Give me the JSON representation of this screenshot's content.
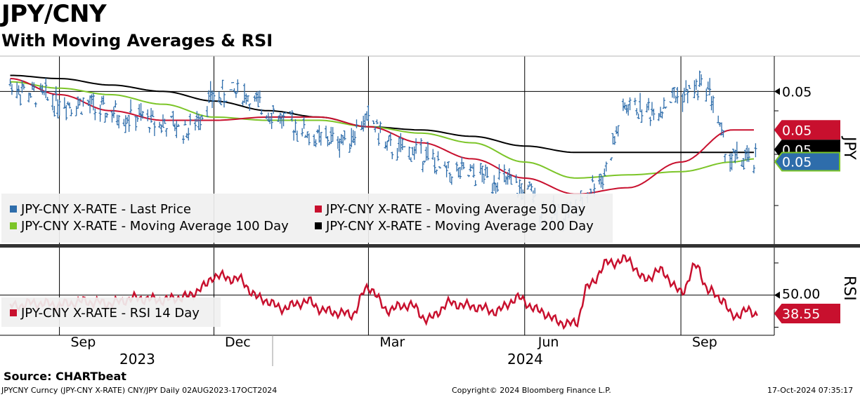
{
  "header": {
    "title": "JPY/CNY",
    "subtitle": "With Moving Averages & RSI"
  },
  "chart_data": [
    {
      "type": "line",
      "panel": "price",
      "ylabel": "JPY",
      "y_tick_labels": [
        "0.05"
      ],
      "x_tick_labels": [
        "Sep",
        "Dec",
        "Mar",
        "Jun",
        "Sep"
      ],
      "x_group_labels": [
        "2023",
        "2024"
      ],
      "x_range": [
        "2023-08-02",
        "2024-10-17"
      ],
      "grid": true,
      "legend_position": "bottom-left",
      "price_tag_labels": [
        "0.05",
        "0.05",
        "0.05"
      ],
      "series": [
        {
          "name": "JPY-CNY X-RATE - Last Price",
          "color": "#2e6dab",
          "style": "ohlc-bars",
          "x": [
            "2023-08-03",
            "2023-08-17",
            "2023-09-01",
            "2023-09-15",
            "2023-10-01",
            "2023-10-15",
            "2023-11-01",
            "2023-11-15",
            "2023-12-01",
            "2023-12-15",
            "2024-01-02",
            "2024-01-15",
            "2024-02-01",
            "2024-02-15",
            "2024-03-01",
            "2024-03-15",
            "2024-04-01",
            "2024-04-15",
            "2024-05-01",
            "2024-05-15",
            "2024-06-01",
            "2024-06-15",
            "2024-07-01",
            "2024-07-15",
            "2024-08-01",
            "2024-08-15",
            "2024-09-01",
            "2024-09-15",
            "2024-10-01",
            "2024-10-15"
          ],
          "values": [
            0.0505,
            0.0502,
            0.05,
            0.0499,
            0.0496,
            0.0495,
            0.0493,
            0.0491,
            0.0501,
            0.0503,
            0.0497,
            0.0493,
            0.0488,
            0.0488,
            0.0494,
            0.0485,
            0.0484,
            0.0478,
            0.0477,
            0.0476,
            0.0472,
            0.0465,
            0.0466,
            0.0476,
            0.0498,
            0.0497,
            0.0502,
            0.0505,
            0.0482,
            0.0481
          ]
        },
        {
          "name": "JPY-CNY X-RATE - Moving Average 50 Day",
          "color": "#c8102e",
          "x": [
            "2023-08-03",
            "2023-09-01",
            "2023-10-01",
            "2023-11-01",
            "2023-12-01",
            "2024-01-02",
            "2024-02-01",
            "2024-03-01",
            "2024-04-01",
            "2024-05-01",
            "2024-06-01",
            "2024-07-01",
            "2024-08-01",
            "2024-09-01",
            "2024-10-01",
            "2024-10-15"
          ],
          "values": [
            0.0507,
            0.0502,
            0.0497,
            0.0494,
            0.0494,
            0.0495,
            0.0495,
            0.0492,
            0.0487,
            0.0482,
            0.0476,
            0.0471,
            0.0473,
            0.0481,
            0.0491,
            0.0491
          ]
        },
        {
          "name": "JPY-CNY X-RATE - Moving Average 100 Day",
          "color": "#7cc528",
          "x": [
            "2023-08-03",
            "2023-09-01",
            "2023-10-01",
            "2023-11-01",
            "2023-12-01",
            "2024-01-02",
            "2024-02-01",
            "2024-03-01",
            "2024-04-01",
            "2024-05-01",
            "2024-06-01",
            "2024-07-01",
            "2024-08-01",
            "2024-09-01",
            "2024-10-01",
            "2024-10-15"
          ],
          "values": [
            0.0506,
            0.0504,
            0.0502,
            0.0499,
            0.0495,
            0.0494,
            0.0494,
            0.0492,
            0.049,
            0.0487,
            0.0481,
            0.0476,
            0.0477,
            0.0478,
            0.0481,
            0.0482
          ]
        },
        {
          "name": "JPY-CNY X-RATE - Moving Average 200 Day",
          "color": "#000000",
          "x": [
            "2023-08-03",
            "2023-09-01",
            "2023-10-01",
            "2023-11-01",
            "2023-12-01",
            "2024-01-02",
            "2024-02-01",
            "2024-03-01",
            "2024-04-01",
            "2024-05-01",
            "2024-06-01",
            "2024-07-01",
            "2024-08-01",
            "2024-09-01",
            "2024-10-01",
            "2024-10-15"
          ],
          "values": [
            0.0508,
            0.0507,
            0.0505,
            0.0503,
            0.05,
            0.0497,
            0.0495,
            0.0492,
            0.0491,
            0.0489,
            0.0486,
            0.0484,
            0.0484,
            0.0484,
            0.0484,
            0.0484
          ]
        }
      ]
    },
    {
      "type": "line",
      "panel": "rsi",
      "ylabel": "RSI",
      "y_tick_labels": [
        "50.00"
      ],
      "reference_line": 50,
      "legend_position": "bottom-left",
      "price_tag_labels": [
        "38.55"
      ],
      "series": [
        {
          "name": "JPY-CNY X-RATE - RSI 14 Day",
          "color": "#c8102e",
          "x": [
            "2023-08-03",
            "2023-08-17",
            "2023-09-01",
            "2023-09-15",
            "2023-10-01",
            "2023-10-15",
            "2023-11-01",
            "2023-11-15",
            "2023-11-25",
            "2023-12-01",
            "2023-12-15",
            "2023-12-28",
            "2024-01-10",
            "2024-01-25",
            "2024-02-05",
            "2024-02-20",
            "2024-03-01",
            "2024-03-12",
            "2024-03-25",
            "2024-04-05",
            "2024-04-18",
            "2024-05-01",
            "2024-05-15",
            "2024-05-28",
            "2024-06-10",
            "2024-06-22",
            "2024-07-01",
            "2024-07-08",
            "2024-07-20",
            "2024-08-01",
            "2024-08-10",
            "2024-08-20",
            "2024-09-01",
            "2024-09-10",
            "2024-09-18",
            "2024-09-25",
            "2024-10-01",
            "2024-10-10",
            "2024-10-16"
          ],
          "values": [
            43,
            45,
            44,
            46,
            45,
            48,
            47,
            49,
            55,
            62,
            60,
            48,
            42,
            46,
            40,
            38,
            55,
            41,
            44,
            35,
            45,
            43,
            40,
            48,
            40,
            33,
            32,
            55,
            70,
            72,
            60,
            65,
            52,
            68,
            52,
            48,
            37,
            40,
            38.55
          ]
        }
      ]
    }
  ],
  "footer": {
    "source": "Source: CHARTbeat",
    "ticker_info": "JPYCNY Curncy (JPY-CNY X-RATE) CNY/JPY  Daily 02AUG2023-17OCT2024",
    "copyright": "Copyright© 2024 Bloomberg Finance L.P.",
    "timestamp": "17-Oct-2024 07:35:17"
  }
}
